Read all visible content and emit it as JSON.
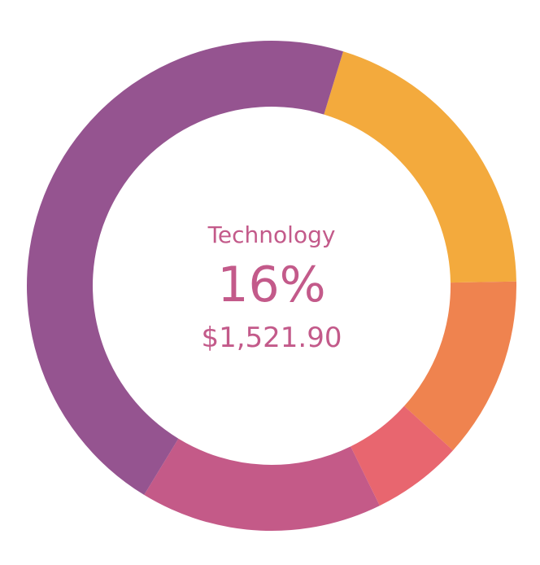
{
  "chart_data": {
    "type": "pie",
    "variant": "donut",
    "slices": [
      {
        "value": 20,
        "color": "#f3aa3d"
      },
      {
        "value": 12,
        "color": "#ef834f"
      },
      {
        "value": 6,
        "color": "#e8666f"
      },
      {
        "value": 16,
        "color": "#c45a88",
        "name": "Technology",
        "highlighted": true
      },
      {
        "value": 46,
        "color": "#955490"
      }
    ],
    "start_angle_deg": 17,
    "highlight": {
      "label": "Technology",
      "percent": "16%",
      "amount": "$1,521.90"
    },
    "label_color": "#c35a8a"
  }
}
